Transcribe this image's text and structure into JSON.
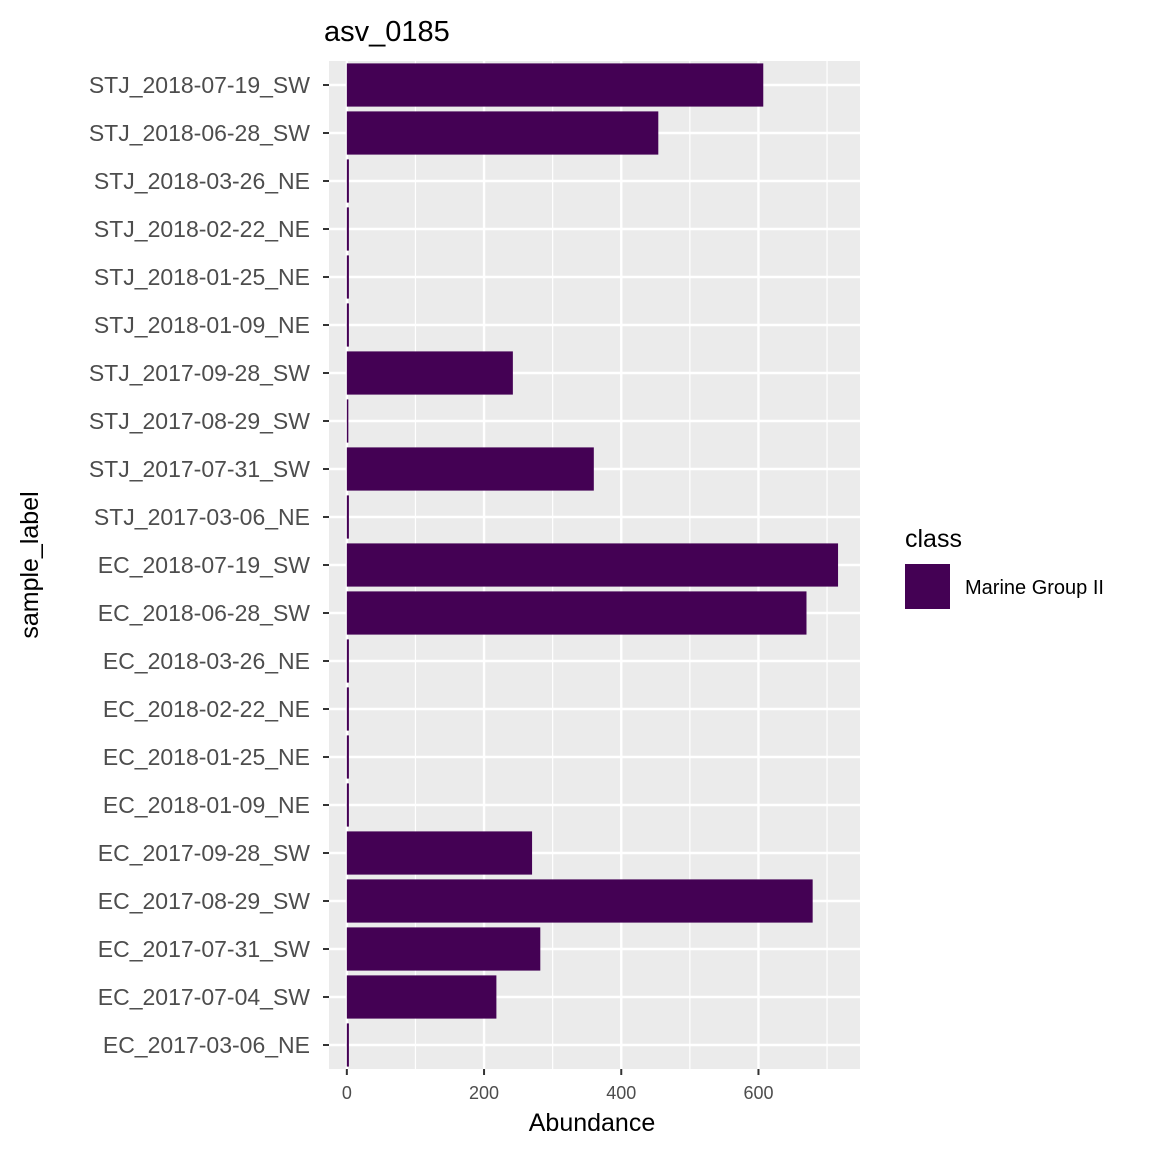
{
  "chart_data": {
    "type": "bar",
    "orientation": "horizontal",
    "title": "asv_0185",
    "xlabel": "Abundance",
    "ylabel": "sample_label",
    "xlim": [
      -26,
      748
    ],
    "x_ticks": [
      0,
      200,
      400,
      600
    ],
    "grid": true,
    "categories": [
      "STJ_2018-07-19_SW",
      "STJ_2018-06-28_SW",
      "STJ_2018-03-26_NE",
      "STJ_2018-02-22_NE",
      "STJ_2018-01-25_NE",
      "STJ_2018-01-09_NE",
      "STJ_2017-09-28_SW",
      "STJ_2017-08-29_SW",
      "STJ_2017-07-31_SW",
      "STJ_2017-03-06_NE",
      "EC_2018-07-19_SW",
      "EC_2018-06-28_SW",
      "EC_2018-03-26_NE",
      "EC_2018-02-22_NE",
      "EC_2018-01-25_NE",
      "EC_2018-01-09_NE",
      "EC_2017-09-28_SW",
      "EC_2017-08-29_SW",
      "EC_2017-07-31_SW",
      "EC_2017-07-04_SW",
      "EC_2017-03-06_NE"
    ],
    "series": [
      {
        "name": "Marine Group II",
        "color": "#440154",
        "values": [
          607,
          454,
          3,
          3,
          3,
          3,
          242,
          2,
          360,
          3,
          716,
          670,
          3,
          3,
          3,
          3,
          270,
          679,
          282,
          218,
          3
        ]
      }
    ],
    "legend": {
      "title": "class",
      "position": "right",
      "entries": [
        {
          "label": "Marine Group II",
          "color": "#440154"
        }
      ]
    }
  }
}
